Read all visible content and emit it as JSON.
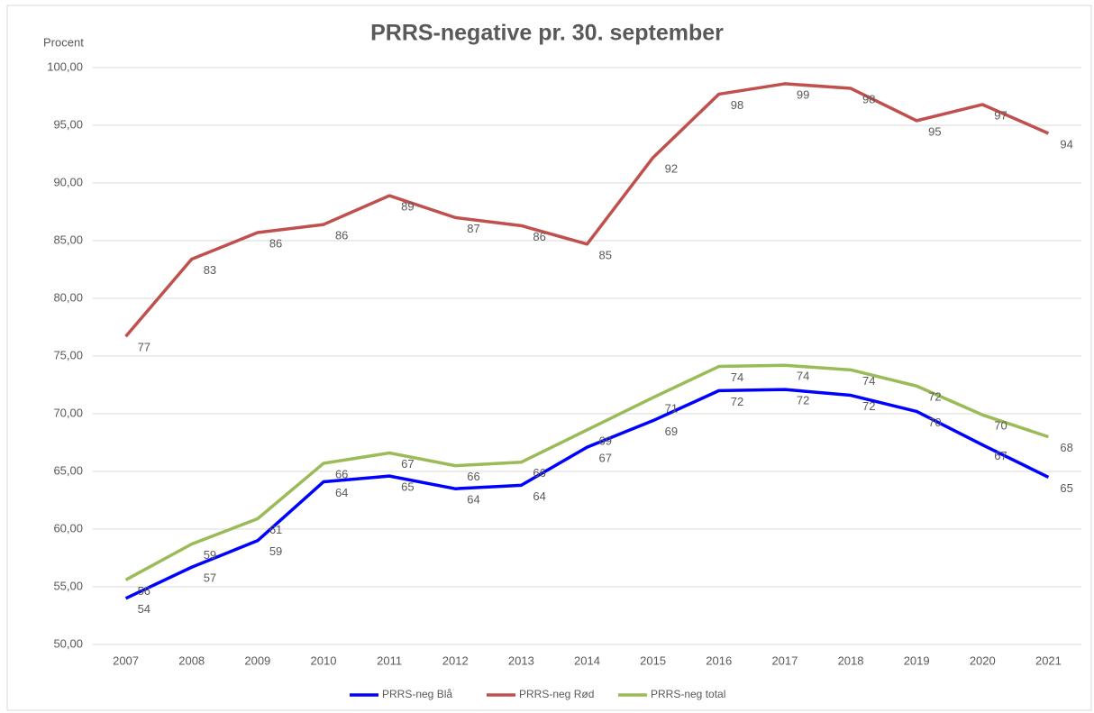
{
  "chart_data": {
    "type": "line",
    "title": "PRRS-negative pr. 30. september",
    "y_label": "Procent",
    "categories": [
      "2007",
      "2008",
      "2009",
      "2010",
      "2011",
      "2012",
      "2013",
      "2014",
      "2015",
      "2016",
      "2017",
      "2018",
      "2019",
      "2020",
      "2021"
    ],
    "series": [
      {
        "name": "PRRS-neg Blå",
        "color": "#0000ff",
        "values": [
          54.0,
          56.7,
          59.0,
          64.1,
          64.6,
          63.5,
          63.8,
          67.1,
          69.4,
          72.0,
          72.1,
          71.6,
          70.2,
          67.3,
          64.5
        ],
        "value_labels": [
          "54",
          "57",
          "59",
          "64",
          "65",
          "64",
          "64",
          "67",
          "69",
          "72",
          "72",
          "72",
          "70",
          "67",
          "65"
        ]
      },
      {
        "name": "PRRS-neg Rød",
        "color": "#c0504d",
        "values": [
          76.7,
          83.4,
          85.7,
          86.4,
          88.9,
          87.0,
          86.3,
          84.7,
          92.2,
          97.7,
          98.6,
          98.2,
          95.4,
          96.8,
          94.3
        ],
        "value_labels": [
          "77",
          "83",
          "86",
          "86",
          "89",
          "87",
          "86",
          "85",
          "92",
          "98",
          "99",
          "98",
          "95",
          "97",
          "94"
        ]
      },
      {
        "name": "PRRS-neg total",
        "color": "#9bbb59",
        "values": [
          55.6,
          58.7,
          60.9,
          65.7,
          66.6,
          65.5,
          65.8,
          68.6,
          71.4,
          74.1,
          74.2,
          73.8,
          72.4,
          69.9,
          68.0
        ],
        "value_labels": [
          "56",
          "59",
          "61",
          "66",
          "67",
          "66",
          "66",
          "69",
          "71",
          "74",
          "74",
          "74",
          "72",
          "70",
          "68"
        ]
      }
    ],
    "ylim": [
      50,
      100
    ],
    "yticks": [
      {
        "value": 50,
        "label": "50,00"
      },
      {
        "value": 55,
        "label": "55,00"
      },
      {
        "value": 60,
        "label": "60,00"
      },
      {
        "value": 65,
        "label": "65,00"
      },
      {
        "value": 70,
        "label": "70,00"
      },
      {
        "value": 75,
        "label": "75,00"
      },
      {
        "value": 80,
        "label": "80,00"
      },
      {
        "value": 85,
        "label": "85,00"
      },
      {
        "value": 90,
        "label": "90,00"
      },
      {
        "value": 95,
        "label": "95,00"
      },
      {
        "value": 100,
        "label": "100,00"
      }
    ],
    "grid": true,
    "legend": "bottom"
  }
}
